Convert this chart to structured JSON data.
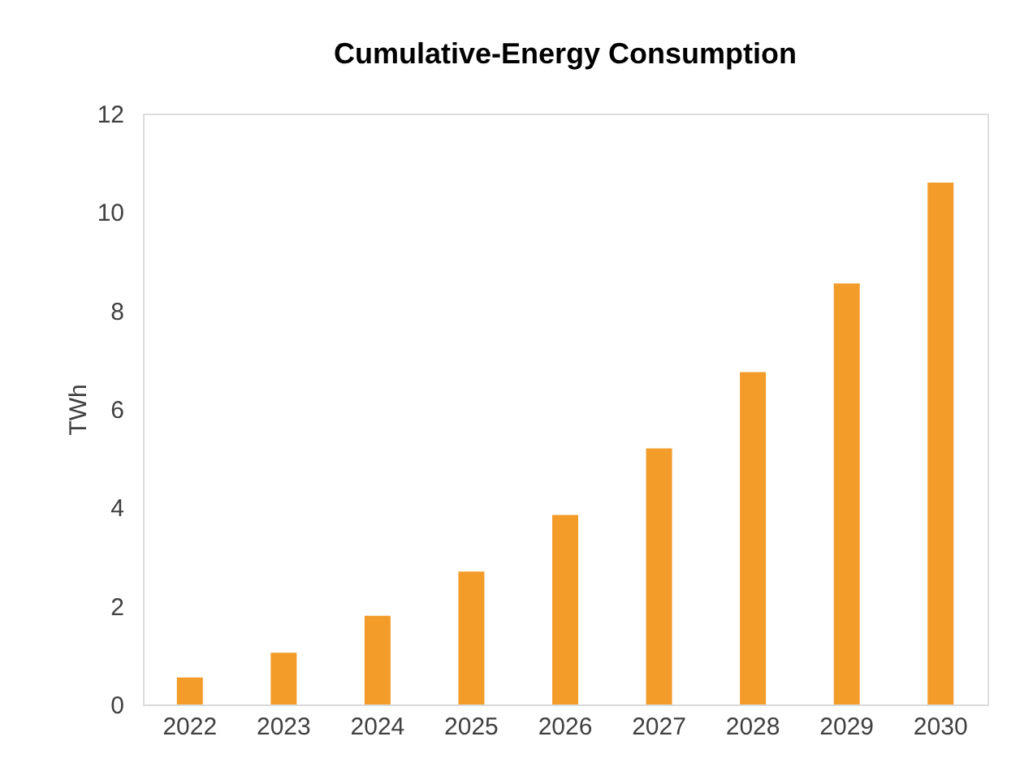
{
  "chart_data": {
    "type": "bar",
    "title": "Cumulative-Energy Consumption",
    "ylabel": "TWh",
    "categories": [
      "2022",
      "2023",
      "2024",
      "2025",
      "2026",
      "2027",
      "2028",
      "2029",
      "2030"
    ],
    "values": [
      0.55,
      1.05,
      1.8,
      2.7,
      3.85,
      5.2,
      6.75,
      8.55,
      10.6
    ],
    "color": "#f39c2a",
    "ylim": [
      0,
      12
    ],
    "yticks": [
      0,
      2,
      4,
      6,
      8,
      10,
      12
    ],
    "grid": false
  }
}
